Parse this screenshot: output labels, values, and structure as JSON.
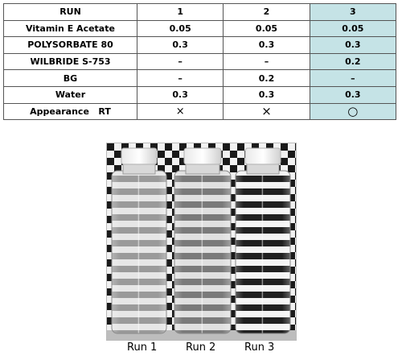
{
  "table": {
    "header": [
      "RUN",
      "1",
      "2",
      "3"
    ],
    "rows": [
      {
        "label": "Vitamin E Acetate",
        "values": [
          "0.05",
          "0.05",
          "0.05"
        ]
      },
      {
        "label": "POLYSORBATE 80",
        "values": [
          "0.3",
          "0.3",
          "0.3"
        ]
      },
      {
        "label": "WILBRIDE S-753",
        "values": [
          "–",
          "–",
          "0.2"
        ]
      },
      {
        "label": "BG",
        "values": [
          "–",
          "0.2",
          "–"
        ]
      },
      {
        "label": "Water",
        "values": [
          "0.3",
          "0.3",
          "0.3"
        ]
      },
      {
        "label": "Appearance   RT",
        "values": [
          "×",
          "×",
          "○"
        ]
      }
    ],
    "highlight_color": "#c5e3e6"
  },
  "photo": {
    "captions": [
      "Run 1",
      "Run 2",
      "Run 3"
    ]
  }
}
